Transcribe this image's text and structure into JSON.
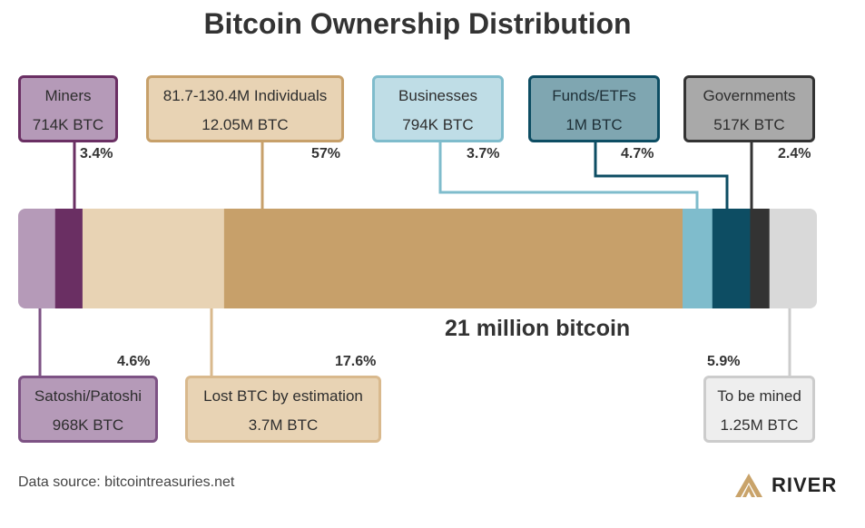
{
  "chart_data": {
    "type": "bar",
    "title": "Bitcoin Ownership Distribution",
    "total_label": "21 million bitcoin",
    "total": 21,
    "segments": [
      {
        "key": "satoshi",
        "name": "Satoshi/Patoshi",
        "btc_label": "968K BTC",
        "percent_label": "4.6%",
        "percent": 4.6,
        "color": "#b59ab8",
        "border": "#7d5284"
      },
      {
        "key": "miners",
        "name": "Miners",
        "btc_label": "714K BTC",
        "percent_label": "3.4%",
        "percent": 3.4,
        "color": "#6a2f63",
        "border": "#6a2f63"
      },
      {
        "key": "lost",
        "name": "Lost BTC by estimation",
        "btc_label": "3.7M BTC",
        "percent_label": "17.6%",
        "percent": 17.6,
        "color": "#e8d3b4",
        "border": "#d9b98d"
      },
      {
        "key": "individuals",
        "name": "81.7-130.4M Individuals",
        "btc_label": "12.05M BTC",
        "percent_label": "57%",
        "percent": 57,
        "color": "#c7a06a",
        "border": "#c7a06a"
      },
      {
        "key": "businesses",
        "name": "Businesses",
        "btc_label": "794K BTC",
        "percent_label": "3.7%",
        "percent": 3.7,
        "color": "#7fbccc",
        "border": "#7fbccc"
      },
      {
        "key": "funds",
        "name": "Funds/ETFs",
        "btc_label": "1M BTC",
        "percent_label": "4.7%",
        "percent": 4.7,
        "color": "#0d4d63",
        "border": "#0d4d63"
      },
      {
        "key": "governments",
        "name": "Governments",
        "btc_label": "517K BTC",
        "percent_label": "2.4%",
        "percent": 2.4,
        "color": "#333333",
        "border": "#333333"
      },
      {
        "key": "tobemined",
        "name": "To be mined",
        "btc_label": "1.25M BTC",
        "percent_label": "5.9%",
        "percent": 5.9,
        "color": "#d9d9d9",
        "border": "#cccccc"
      }
    ],
    "box_fills": {
      "satoshi": "#b59ab8",
      "miners": "#b59ab8",
      "lost": "#e8d3b4",
      "individuals": "#e8d3b4",
      "businesses": "#bfdde6",
      "funds": "#7fa6b1",
      "governments": "#a9a9a9",
      "tobemined": "#eeeeee"
    }
  },
  "footer": {
    "source": "Data source: bitcointreasuries.net",
    "brand": "RIVER",
    "brand_icon": "river-mountain-icon",
    "brand_color": "#c9a36a"
  }
}
